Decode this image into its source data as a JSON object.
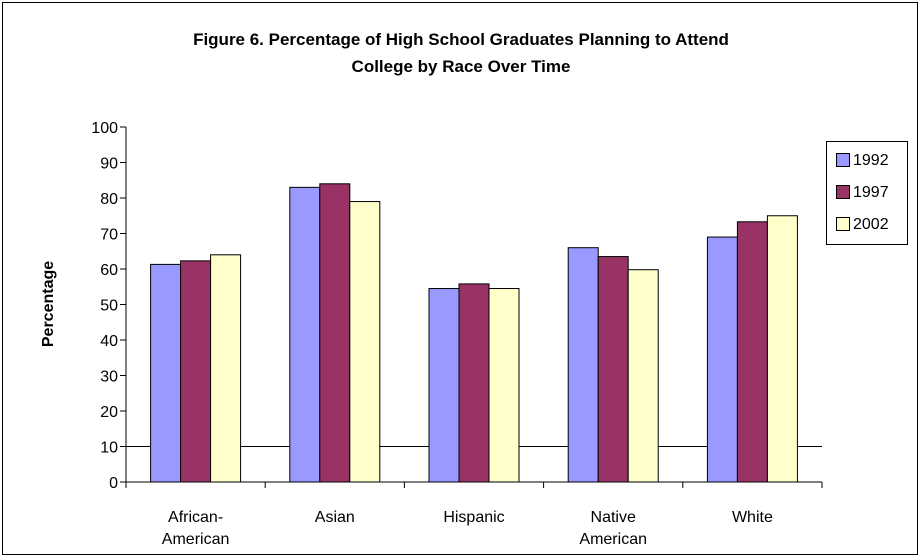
{
  "chart_data": {
    "type": "bar",
    "title_lines": [
      "Figure 6. Percentage of High School Graduates Planning to Attend",
      "College by Race Over Time"
    ],
    "xlabel": "",
    "ylabel": "Percentage",
    "ylim": [
      0,
      100
    ],
    "yticks": [
      "0",
      "10",
      "20",
      "30",
      "40",
      "50",
      "60",
      "70",
      "80",
      "90",
      "100"
    ],
    "categories": [
      [
        "African-",
        "American"
      ],
      [
        "Asian"
      ],
      [
        "Hispanic"
      ],
      [
        "Native",
        "American"
      ],
      [
        "White"
      ]
    ],
    "series": [
      {
        "name": "1992",
        "color": "#9999ff",
        "values": [
          61.3,
          83,
          54.5,
          66,
          69
        ]
      },
      {
        "name": "1997",
        "color": "#993366",
        "values": [
          62.3,
          84,
          55.8,
          63.5,
          73.3
        ]
      },
      {
        "name": "2002",
        "color": "#ffffcc",
        "values": [
          64,
          79,
          54.5,
          59.8,
          75
        ]
      }
    ],
    "gridlines": [
      10
    ],
    "legend_position": "right"
  }
}
